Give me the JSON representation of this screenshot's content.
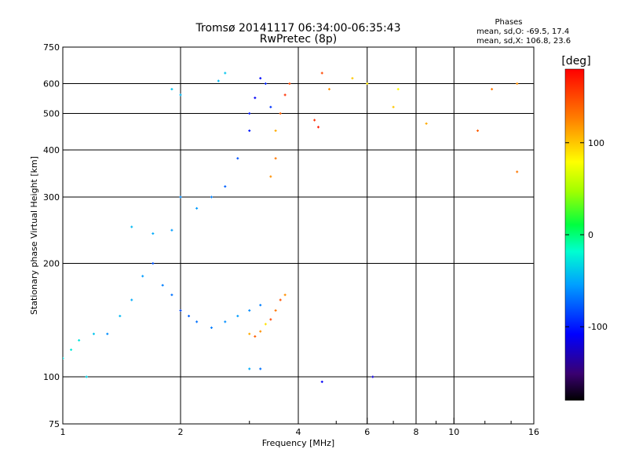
{
  "chart_data": {
    "type": "scatter",
    "title": "Tromsø 20141117 06:34:00-06:35:43",
    "subtitle": "RwPretec (8p)",
    "phases_box": {
      "title": "Phases",
      "line1": "mean, sd,O: -69.5, 17.4",
      "line2": "mean, sd,X: 106.8, 23.6"
    },
    "xlabel": "Frequency [MHz]",
    "ylabel": "Stationary phase Virtual Height [km]",
    "x_scale": "log",
    "y_scale": "log",
    "xlim": [
      1,
      16
    ],
    "ylim": [
      75,
      750
    ],
    "x_ticks": [
      {
        "value": 1,
        "label": "1"
      },
      {
        "value": 2,
        "label": "2"
      },
      {
        "value": 4,
        "label": "4"
      },
      {
        "value": 6,
        "label": "6"
      },
      {
        "value": 8,
        "label": "8"
      },
      {
        "value": 10,
        "label": "10"
      },
      {
        "value": 16,
        "label": "16"
      }
    ],
    "x_gridlines": [
      2,
      4,
      6,
      8,
      10
    ],
    "x_minor_ticks": [
      3,
      5,
      7,
      9,
      12,
      14
    ],
    "y_ticks": [
      {
        "value": 75,
        "label": "75"
      },
      {
        "value": 100,
        "label": "100"
      },
      {
        "value": 200,
        "label": "200"
      },
      {
        "value": 300,
        "label": "300"
      },
      {
        "value": 400,
        "label": "400"
      },
      {
        "value": 500,
        "label": "500"
      },
      {
        "value": 600,
        "label": "600"
      },
      {
        "value": 750,
        "label": "750"
      }
    ],
    "y_gridlines": [
      100,
      200,
      300,
      400,
      500,
      600
    ],
    "grid": true,
    "colorbar": {
      "label": "[deg]",
      "range": [
        -180,
        180
      ],
      "ticks": [
        {
          "value": 100,
          "label": "100"
        },
        {
          "value": 0,
          "label": "0"
        },
        {
          "value": -100,
          "label": "-100"
        }
      ],
      "colormap": "rainbow",
      "placement": "right"
    },
    "series": [
      {
        "mode": "O",
        "points": [
          {
            "f": 1.0,
            "h": 112,
            "p": -30
          },
          {
            "f": 1.05,
            "h": 118,
            "p": -25
          },
          {
            "f": 1.1,
            "h": 125,
            "p": -28
          },
          {
            "f": 1.15,
            "h": 100,
            "p": -35
          },
          {
            "f": 1.2,
            "h": 130,
            "p": -40
          },
          {
            "f": 1.3,
            "h": 130,
            "p": -60
          },
          {
            "f": 1.4,
            "h": 145,
            "p": -45
          },
          {
            "f": 1.5,
            "h": 160,
            "p": -50
          },
          {
            "f": 1.6,
            "h": 185,
            "p": -55
          },
          {
            "f": 1.7,
            "h": 200,
            "p": -80
          },
          {
            "f": 1.8,
            "h": 175,
            "p": -65
          },
          {
            "f": 1.9,
            "h": 165,
            "p": -70
          },
          {
            "f": 2.0,
            "h": 150,
            "p": -85
          },
          {
            "f": 2.1,
            "h": 145,
            "p": -75
          },
          {
            "f": 2.2,
            "h": 140,
            "p": -70
          },
          {
            "f": 2.4,
            "h": 135,
            "p": -65
          },
          {
            "f": 2.6,
            "h": 140,
            "p": -60
          },
          {
            "f": 2.8,
            "h": 145,
            "p": -55
          },
          {
            "f": 3.0,
            "h": 150,
            "p": -60
          },
          {
            "f": 3.2,
            "h": 155,
            "p": -65
          },
          {
            "f": 1.5,
            "h": 250,
            "p": -45
          },
          {
            "f": 1.7,
            "h": 240,
            "p": -50
          },
          {
            "f": 1.9,
            "h": 245,
            "p": -55
          },
          {
            "f": 2.0,
            "h": 300,
            "p": -60
          },
          {
            "f": 2.2,
            "h": 280,
            "p": -55
          },
          {
            "f": 2.4,
            "h": 300,
            "p": -65
          },
          {
            "f": 2.6,
            "h": 320,
            "p": -75
          },
          {
            "f": 2.8,
            "h": 380,
            "p": -80
          },
          {
            "f": 3.0,
            "h": 450,
            "p": -100
          },
          {
            "f": 3.1,
            "h": 550,
            "p": -110
          },
          {
            "f": 3.2,
            "h": 620,
            "p": -105
          },
          {
            "f": 3.0,
            "h": 500,
            "p": -100
          },
          {
            "f": 3.3,
            "h": 600,
            "p": -95
          },
          {
            "f": 3.4,
            "h": 520,
            "p": -90
          },
          {
            "f": 1.9,
            "h": 580,
            "p": -40
          },
          {
            "f": 2.0,
            "h": 560,
            "p": -45
          },
          {
            "f": 2.6,
            "h": 640,
            "p": -40
          },
          {
            "f": 2.5,
            "h": 610,
            "p": -45
          },
          {
            "f": 3.0,
            "h": 105,
            "p": -50
          },
          {
            "f": 3.2,
            "h": 105,
            "p": -70
          },
          {
            "f": 4.6,
            "h": 97,
            "p": -110
          },
          {
            "f": 6.2,
            "h": 100,
            "p": -120
          }
        ]
      },
      {
        "mode": "X",
        "points": [
          {
            "f": 3.0,
            "h": 130,
            "p": 110
          },
          {
            "f": 3.1,
            "h": 128,
            "p": 140
          },
          {
            "f": 3.2,
            "h": 132,
            "p": 120
          },
          {
            "f": 3.3,
            "h": 138,
            "p": 90
          },
          {
            "f": 3.4,
            "h": 142,
            "p": 150
          },
          {
            "f": 3.5,
            "h": 150,
            "p": 130
          },
          {
            "f": 3.6,
            "h": 160,
            "p": 145
          },
          {
            "f": 3.7,
            "h": 165,
            "p": 120
          },
          {
            "f": 3.5,
            "h": 450,
            "p": 110
          },
          {
            "f": 3.6,
            "h": 500,
            "p": 140
          },
          {
            "f": 3.7,
            "h": 560,
            "p": 160
          },
          {
            "f": 3.8,
            "h": 600,
            "p": 150
          },
          {
            "f": 3.5,
            "h": 380,
            "p": 130
          },
          {
            "f": 3.4,
            "h": 340,
            "p": 120
          },
          {
            "f": 4.5,
            "h": 460,
            "p": 170
          },
          {
            "f": 4.4,
            "h": 480,
            "p": 160
          },
          {
            "f": 4.6,
            "h": 640,
            "p": 150
          },
          {
            "f": 4.8,
            "h": 580,
            "p": 120
          },
          {
            "f": 5.5,
            "h": 620,
            "p": 100
          },
          {
            "f": 6.0,
            "h": 600,
            "p": 90
          },
          {
            "f": 7.0,
            "h": 520,
            "p": 100
          },
          {
            "f": 7.2,
            "h": 580,
            "p": 80
          },
          {
            "f": 8.5,
            "h": 470,
            "p": 110
          },
          {
            "f": 11.5,
            "h": 450,
            "p": 140
          },
          {
            "f": 12.5,
            "h": 580,
            "p": 130
          },
          {
            "f": 14.5,
            "h": 600,
            "p": 120
          },
          {
            "f": 14.5,
            "h": 350,
            "p": 130
          }
        ]
      }
    ]
  }
}
